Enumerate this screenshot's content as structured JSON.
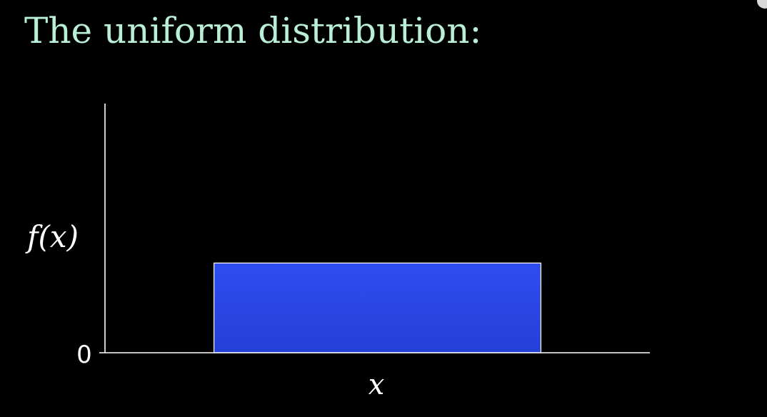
{
  "title": "The uniform distribution:",
  "colors": {
    "background": "#000000",
    "title": "#b9efd6",
    "bar_fill_top": "#2f4df0",
    "bar_fill_bottom": "#2440d8",
    "bar_stroke": "#ffffff",
    "axis": "#ffffff"
  },
  "chart_data": {
    "type": "bar",
    "title": "The uniform distribution:",
    "xlabel": "x",
    "ylabel": "f(x)",
    "y_tick_labels": [
      "0"
    ],
    "xlim": [
      0,
      1
    ],
    "ylim": [
      0,
      1
    ],
    "bars": [
      {
        "x_start": 0.2,
        "x_end": 0.8,
        "value": 0.36
      }
    ],
    "grid": false,
    "legend": "none"
  }
}
